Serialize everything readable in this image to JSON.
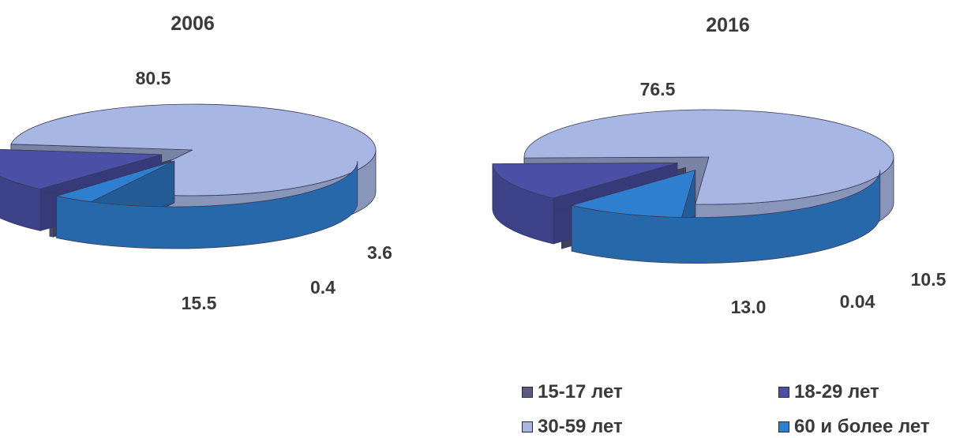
{
  "chart_data": {
    "type": "pie",
    "style": "3d-exploded",
    "categories": [
      "15-17 лет",
      "18-29 лет",
      "30-59 лет",
      "60 и более лет"
    ],
    "colors": {
      "15-17 лет": "#5a5a84",
      "18-29 лет": "#4b50a6",
      "30-59 лет": "#a8b6e3",
      "60 и более лет": "#2f7fd0"
    },
    "legend_placement": "bottom-right",
    "charts": [
      {
        "title": "2006",
        "values": [
          0.4,
          15.5,
          80.5,
          3.6
        ],
        "labels": [
          "0.4",
          "15.5",
          "80.5",
          "3.6"
        ]
      },
      {
        "title": "2016",
        "values": [
          0.04,
          13.0,
          76.5,
          10.5
        ],
        "labels": [
          "0.04",
          "13.0",
          "76.5",
          "10.5"
        ]
      }
    ]
  }
}
